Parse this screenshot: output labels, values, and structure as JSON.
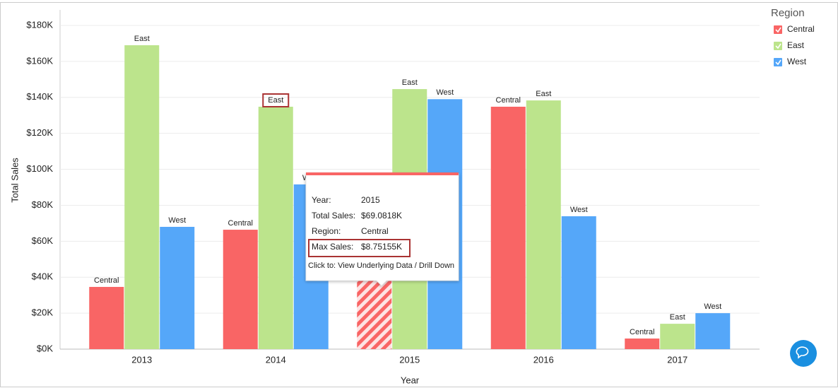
{
  "chart_data": {
    "type": "bar",
    "x_label": "Year",
    "y_label": "Total Sales",
    "categories": [
      "2013",
      "2014",
      "2015",
      "2016",
      "2017"
    ],
    "series": [
      {
        "name": "Central",
        "color": "#f96565",
        "values": [
          34600,
          66400,
          69081.8,
          134800,
          5900
        ]
      },
      {
        "name": "East",
        "color": "#bce48c",
        "values": [
          169000,
          134800,
          144600,
          138300,
          14100
        ]
      },
      {
        "name": "West",
        "color": "#55a7f9",
        "values": [
          68000,
          91600,
          139000,
          73900,
          20000
        ]
      }
    ],
    "ylim": [
      0,
      180000
    ],
    "yticks": [
      {
        "value": 0,
        "label": "$0K"
      },
      {
        "value": 20000,
        "label": "$20K"
      },
      {
        "value": 40000,
        "label": "$40K"
      },
      {
        "value": 60000,
        "label": "$60K"
      },
      {
        "value": 80000,
        "label": "$80K"
      },
      {
        "value": 100000,
        "label": "$100K"
      },
      {
        "value": 120000,
        "label": "$120K"
      },
      {
        "value": 140000,
        "label": "$140K"
      },
      {
        "value": 160000,
        "label": "$160K"
      },
      {
        "value": 180000,
        "label": "$180K"
      }
    ],
    "grid": true,
    "legend": {
      "title": "Region",
      "position": "right"
    },
    "highlight": {
      "series": 0,
      "index": 2
    }
  },
  "tooltip": {
    "rows": [
      {
        "label": "Year:",
        "value": "2015"
      },
      {
        "label": "Total Sales:",
        "value": "$69.0818K"
      },
      {
        "label": "Region:",
        "value": "Central"
      },
      {
        "label": "Max Sales:",
        "value": "$8.75155K"
      }
    ],
    "footer": "Click to: View Underlying Data / Drill Down"
  }
}
